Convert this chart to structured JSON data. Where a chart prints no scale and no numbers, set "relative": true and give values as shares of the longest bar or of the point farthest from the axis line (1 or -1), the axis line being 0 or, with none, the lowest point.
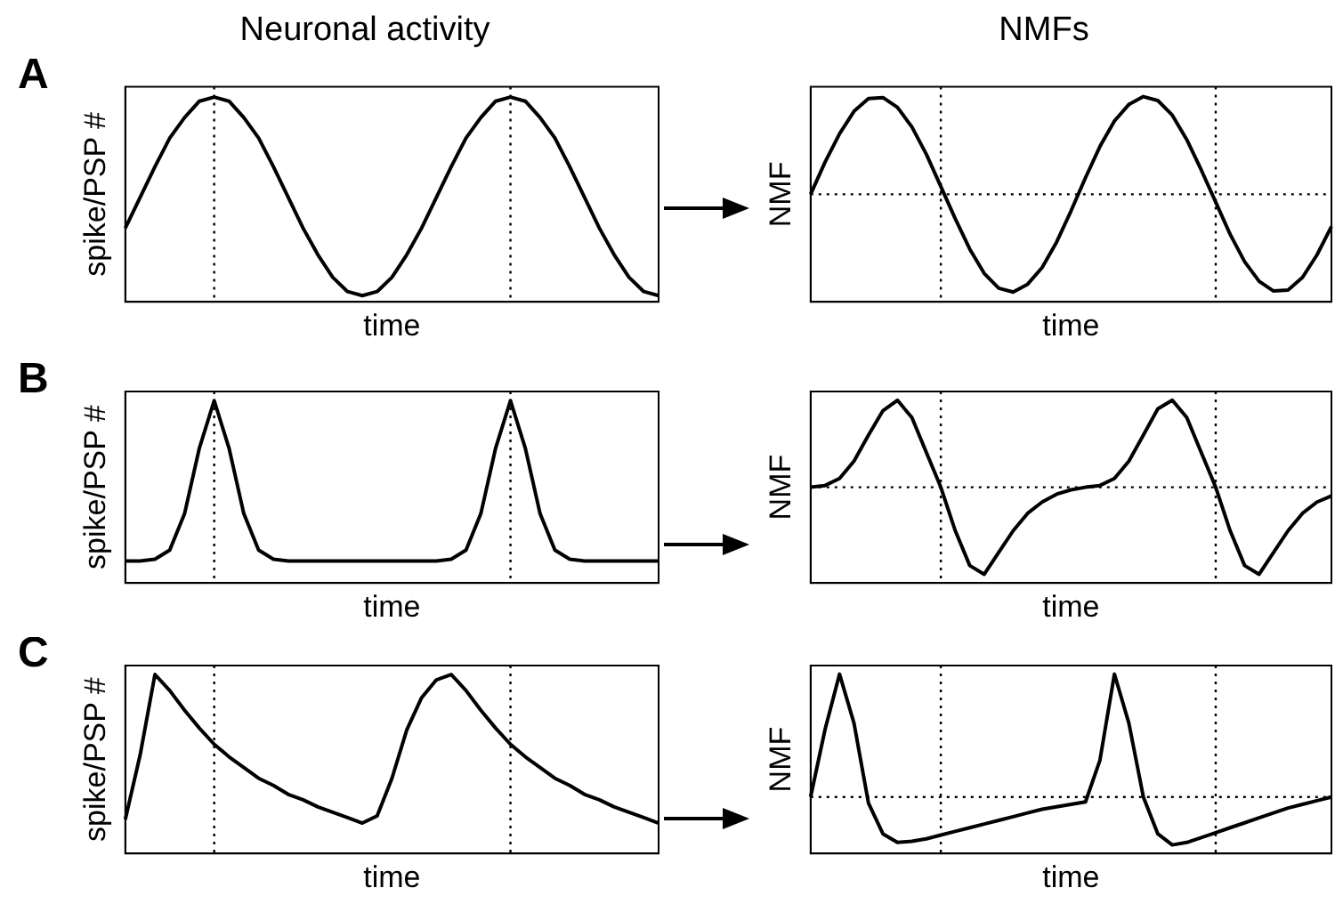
{
  "chart_data": [
    {
      "type": "line",
      "title": "Neuronal activity",
      "xlabel": "time",
      "ylabel": "spike/PSP #",
      "annotations": [
        "A"
      ],
      "relative": true,
      "categories": [
        null,
        null,
        null,
        null,
        null,
        null,
        null,
        null,
        null,
        null,
        null,
        null,
        null,
        null,
        null,
        null,
        null,
        null,
        null,
        null,
        null,
        null,
        null,
        null,
        null,
        null,
        null,
        null,
        null,
        null,
        null,
        null,
        null,
        null,
        null,
        null,
        null
      ],
      "tick_labels": false,
      "legend": false,
      "line_style": "solid",
      "series": [
        {
          "color": "#000000",
          "values": [
            0.36,
            0.51,
            0.66,
            0.8,
            0.9,
            0.98,
            1,
            0.98,
            0.9,
            0.8,
            0.66,
            0.51,
            0.36,
            0.23,
            0.12,
            0.05,
            0.03,
            0.05,
            0.12,
            0.23,
            0.36,
            0.51,
            0.66,
            0.8,
            0.9,
            0.98,
            1,
            0.98,
            0.9,
            0.8,
            0.66,
            0.51,
            0.36,
            0.23,
            0.12,
            0.05,
            0.03
          ]
        }
      ]
    },
    {
      "type": "line",
      "title": "NMFs",
      "xlabel": "time",
      "ylabel": "NMF",
      "relative": true,
      "categories": [
        null,
        null,
        null,
        null,
        null,
        null,
        null,
        null,
        null,
        null,
        null,
        null,
        null,
        null,
        null,
        null,
        null,
        null,
        null,
        null,
        null,
        null,
        null,
        null,
        null,
        null,
        null,
        null,
        null,
        null,
        null,
        null,
        null,
        null,
        null,
        null,
        null
      ],
      "tick_labels": false,
      "legend": false,
      "line_style": "solid",
      "series": [
        {
          "color": "#000000",
          "values": [
            0,
            0.33,
            0.62,
            0.85,
            0.98,
            0.99,
            0.89,
            0.69,
            0.41,
            0.08,
            -0.25,
            -0.56,
            -0.81,
            -0.96,
            -1,
            -0.92,
            -0.75,
            -0.49,
            -0.17,
            0.17,
            0.49,
            0.75,
            0.92,
            1,
            0.96,
            0.81,
            0.56,
            0.25,
            -0.08,
            -0.41,
            -0.69,
            -0.89,
            -0.99,
            -0.98,
            -0.85,
            -0.62,
            -0.33
          ]
        }
      ],
      "ref_lines": [
        {
          "axis": "y",
          "value": 0,
          "line_style": "dotted"
        }
      ]
    },
    {
      "type": "line",
      "xlabel": "time",
      "ylabel": "spike/PSP #",
      "annotations": [
        "B"
      ],
      "relative": true,
      "categories": [
        null,
        null,
        null,
        null,
        null,
        null,
        null,
        null,
        null,
        null,
        null,
        null,
        null,
        null,
        null,
        null,
        null,
        null,
        null,
        null,
        null,
        null,
        null,
        null,
        null,
        null,
        null,
        null,
        null,
        null,
        null,
        null,
        null,
        null,
        null,
        null,
        null
      ],
      "tick_labels": false,
      "legend": false,
      "line_style": "solid",
      "series": [
        {
          "color": "#000000",
          "values": [
            0.12,
            0.12,
            0.13,
            0.18,
            0.38,
            0.74,
            1,
            0.74,
            0.38,
            0.18,
            0.13,
            0.12,
            0.12,
            0.12,
            0.12,
            0.12,
            0.12,
            0.12,
            0.12,
            0.12,
            0.12,
            0.12,
            0.13,
            0.18,
            0.38,
            0.74,
            1,
            0.74,
            0.38,
            0.18,
            0.13,
            0.12,
            0.12,
            0.12,
            0.12,
            0.12,
            0.12
          ]
        }
      ]
    },
    {
      "type": "line",
      "xlabel": "time",
      "ylabel": "NMF",
      "relative": true,
      "categories": [
        null,
        null,
        null,
        null,
        null,
        null,
        null,
        null,
        null,
        null,
        null,
        null,
        null,
        null,
        null,
        null,
        null,
        null,
        null,
        null,
        null,
        null,
        null,
        null,
        null,
        null,
        null,
        null,
        null,
        null,
        null,
        null,
        null,
        null,
        null,
        null,
        null
      ],
      "tick_labels": false,
      "legend": false,
      "line_style": "solid",
      "series": [
        {
          "color": "#000000",
          "values": [
            0,
            0.02,
            0.1,
            0.3,
            0.6,
            0.88,
            1,
            0.8,
            0.4,
            0,
            -0.5,
            -0.9,
            -1,
            -0.75,
            -0.5,
            -0.3,
            -0.17,
            -0.08,
            -0.03,
            0,
            0.02,
            0.1,
            0.3,
            0.6,
            0.9,
            1,
            0.8,
            0.4,
            0,
            -0.5,
            -0.9,
            -1,
            -0.75,
            -0.5,
            -0.3,
            -0.17,
            -0.1
          ]
        }
      ],
      "ref_lines": [
        {
          "axis": "y",
          "value": 0,
          "line_style": "dotted"
        }
      ]
    },
    {
      "type": "line",
      "xlabel": "time",
      "ylabel": "spike/PSP #",
      "annotations": [
        "C"
      ],
      "relative": true,
      "categories": [
        null,
        null,
        null,
        null,
        null,
        null,
        null,
        null,
        null,
        null,
        null,
        null,
        null,
        null,
        null,
        null,
        null,
        null,
        null,
        null,
        null,
        null,
        null,
        null,
        null,
        null,
        null,
        null,
        null,
        null,
        null,
        null,
        null,
        null,
        null,
        null,
        null
      ],
      "tick_labels": false,
      "legend": false,
      "line_style": "solid",
      "series": [
        {
          "color": "#000000",
          "values": [
            0.19,
            0.55,
            1,
            0.91,
            0.8,
            0.7,
            0.61,
            0.54,
            0.48,
            0.42,
            0.38,
            0.33,
            0.3,
            0.26,
            0.23,
            0.2,
            0.17,
            0.21,
            0.42,
            0.69,
            0.87,
            0.97,
            1,
            0.91,
            0.8,
            0.7,
            0.61,
            0.54,
            0.48,
            0.42,
            0.38,
            0.33,
            0.3,
            0.26,
            0.23,
            0.2,
            0.17
          ]
        }
      ]
    },
    {
      "type": "line",
      "xlabel": "time",
      "ylabel": "NMF",
      "relative": true,
      "categories": [
        null,
        null,
        null,
        null,
        null,
        null,
        null,
        null,
        null,
        null,
        null,
        null,
        null,
        null,
        null,
        null,
        null,
        null,
        null,
        null,
        null,
        null,
        null,
        null,
        null,
        null,
        null,
        null,
        null,
        null,
        null,
        null,
        null,
        null,
        null,
        null,
        null
      ],
      "tick_labels": false,
      "legend": false,
      "line_style": "solid",
      "series": [
        {
          "color": "#000000",
          "values": [
            0,
            0.55,
            1,
            0.6,
            -0.05,
            -0.3,
            -0.37,
            -0.36,
            -0.34,
            -0.31,
            -0.28,
            -0.25,
            -0.22,
            -0.19,
            -0.16,
            -0.13,
            -0.1,
            -0.08,
            -0.06,
            -0.04,
            0.3,
            1,
            0.6,
            0,
            -0.3,
            -0.39,
            -0.37,
            -0.33,
            -0.29,
            -0.25,
            -0.21,
            -0.17,
            -0.13,
            -0.09,
            -0.06,
            -0.03,
            0
          ]
        }
      ],
      "ref_lines": [
        {
          "axis": "y",
          "value": 0,
          "line_style": "dotted"
        }
      ]
    }
  ]
}
